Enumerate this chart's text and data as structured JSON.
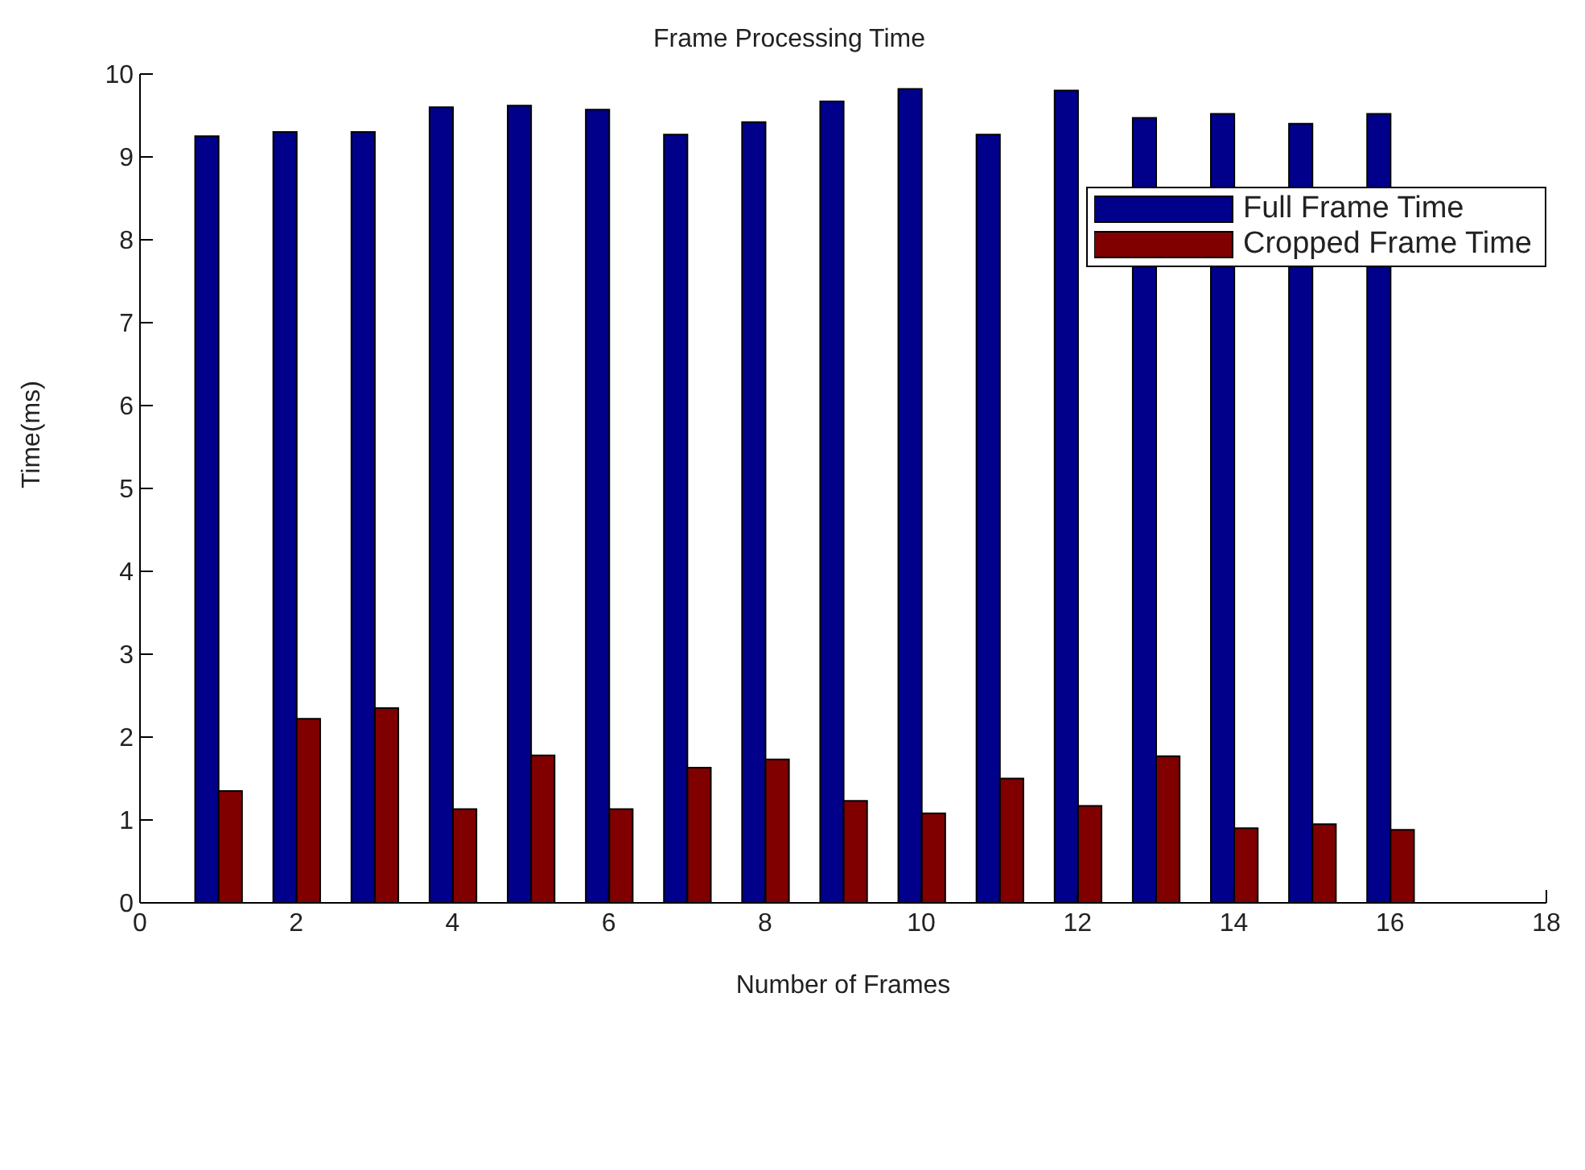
{
  "chart_data": {
    "type": "bar",
    "title": "Frame Processing Time",
    "xlabel": "Number of Frames",
    "ylabel": "Time(ms)",
    "x": [
      1,
      2,
      3,
      4,
      5,
      6,
      7,
      8,
      9,
      10,
      11,
      12,
      13,
      14,
      15,
      16
    ],
    "series": [
      {
        "name": "Full Frame Time",
        "color": "#00008b",
        "values": [
          9.25,
          9.3,
          9.3,
          9.6,
          9.62,
          9.57,
          9.27,
          9.42,
          9.67,
          9.82,
          9.27,
          9.8,
          9.47,
          9.52,
          9.4,
          9.52
        ]
      },
      {
        "name": "Cropped Frame Time",
        "color": "#800000",
        "values": [
          1.35,
          2.22,
          2.35,
          1.13,
          1.78,
          1.13,
          1.63,
          1.73,
          1.23,
          1.08,
          1.5,
          1.17,
          1.77,
          0.9,
          0.95,
          0.88
        ]
      }
    ],
    "xlim": [
      0,
      18
    ],
    "xticks": [
      0,
      2,
      4,
      6,
      8,
      10,
      12,
      14,
      16,
      18
    ],
    "ylim": [
      0,
      10
    ],
    "yticks": [
      0,
      1,
      2,
      3,
      4,
      5,
      6,
      7,
      8,
      9,
      10
    ],
    "grid": false,
    "legend": "top right"
  }
}
